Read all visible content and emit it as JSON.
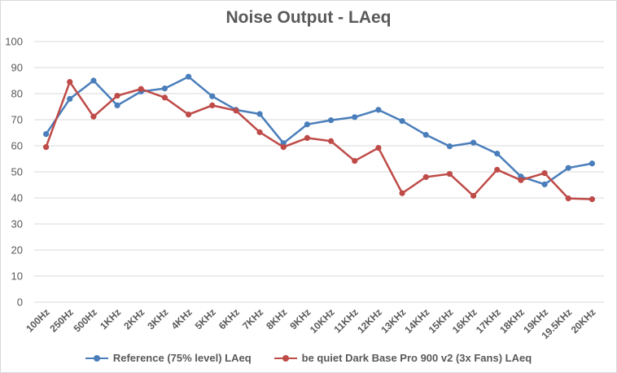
{
  "chart_data": {
    "type": "line",
    "title": "Noise Output - LAeq",
    "xlabel": "",
    "ylabel": "",
    "ylim": [
      0,
      100
    ],
    "yticks": [
      "0",
      "10",
      "20",
      "30",
      "40",
      "50",
      "60",
      "70",
      "80",
      "90",
      "100"
    ],
    "grid": true,
    "legend_position": "bottom",
    "categories": [
      "100Hz",
      "250Hz",
      "500Hz",
      "1KHz",
      "2KHz",
      "3KHz",
      "4KHz",
      "5KHz",
      "6KHz",
      "7KHz",
      "8KHz",
      "9KHz",
      "10KHz",
      "11KHz",
      "12KHz",
      "13KHz",
      "14KHz",
      "15KHz",
      "16KHz",
      "17KHz",
      "18KHz",
      "19KHz",
      "19.5KHz",
      "20KHz"
    ],
    "series": [
      {
        "name": "Reference (75% level) LAeq",
        "color": "#4a7ebb",
        "values": [
          64.5,
          78,
          85,
          75.5,
          80.8,
          82,
          86.5,
          79,
          73.8,
          72.2,
          61,
          68.2,
          69.8,
          71,
          73.8,
          69.5,
          64.2,
          59.8,
          61.2,
          57,
          48.2,
          45.2,
          51.5,
          53.2
        ]
      },
      {
        "name": "be quiet Dark Base Pro 900 v2 (3x Fans) LAeq",
        "color": "#be4b48",
        "values": [
          59.5,
          84.5,
          71.2,
          79.2,
          81.8,
          78.5,
          72,
          75.5,
          73.5,
          65.2,
          59.5,
          63,
          61.8,
          54.2,
          59.2,
          41.8,
          48,
          49.2,
          40.8,
          50.8,
          46.8,
          49.5,
          39.8,
          39.5
        ]
      }
    ]
  }
}
